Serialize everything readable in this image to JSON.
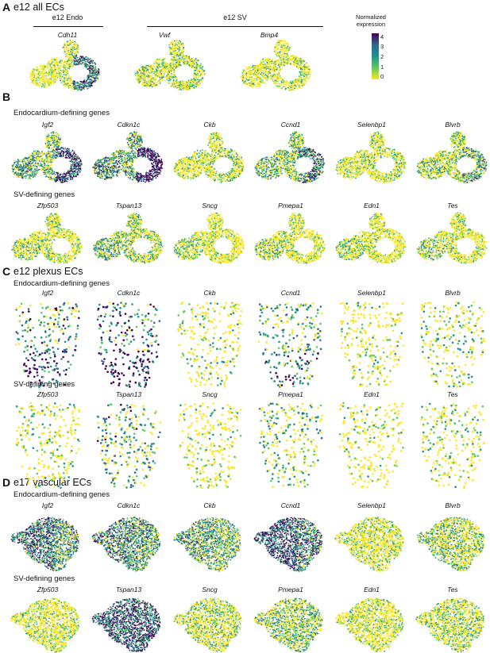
{
  "panel_a": {
    "letter": "A",
    "title": "e12 all ECs",
    "groups": [
      "e12 Endo",
      "e12 SV"
    ],
    "genes": [
      "Cdh11",
      "Vwf",
      "Bmp4"
    ],
    "legend": {
      "title": "Normalized expression",
      "ticks": [
        "4",
        "3",
        "2",
        "1",
        "0"
      ],
      "colors": [
        "#440154",
        "#31688e",
        "#21918c",
        "#5ec962",
        "#fde725"
      ]
    }
  },
  "panel_b": {
    "letter": "B",
    "endo_label": "Endocardium-defining genes",
    "sv_label": "SV-defining genes",
    "endo_genes": [
      "Igf2",
      "Cdkn1c",
      "Ckb",
      "Ccnd1",
      "Selenbp1",
      "Blvrb"
    ],
    "sv_genes": [
      "Zfp503",
      "Tspan13",
      "Sncg",
      "Pmepa1",
      "Edn1",
      "Tes"
    ]
  },
  "panel_c": {
    "letter": "C",
    "title": "e12 plexus ECs",
    "endo_label": "Endocardium-defining genes",
    "sv_label": "SV-defining genes",
    "endo_genes": [
      "Igf2",
      "Cdkn1c",
      "Ckb",
      "Ccnd1",
      "Selenbp1",
      "Blvrb"
    ],
    "sv_genes": [
      "Zfp503",
      "Tspan13",
      "Sncg",
      "Pmepa1",
      "Edn1",
      "Tes"
    ]
  },
  "panel_d": {
    "letter": "D",
    "title": "e17 vascular ECs",
    "endo_label": "Endocardium-defining genes",
    "sv_label": "SV-defining genes",
    "endo_genes": [
      "Igf2",
      "Cdkn1c",
      "Ckb",
      "Ccnd1",
      "Selenbp1",
      "Blvrb"
    ],
    "sv_genes": [
      "Zfp503",
      "Tspan13",
      "Sncg",
      "Pmepa1",
      "Edn1",
      "Tes"
    ]
  }
}
